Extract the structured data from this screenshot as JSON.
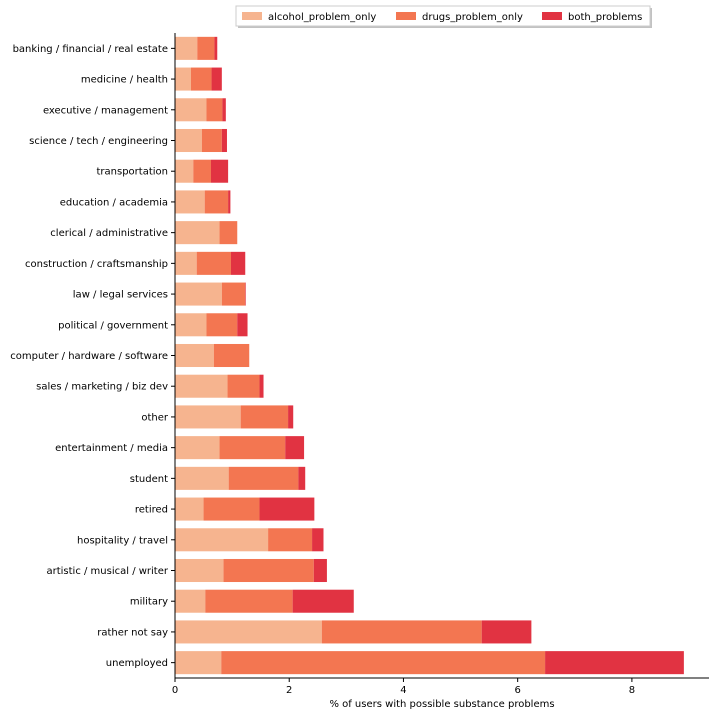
{
  "chart_data": {
    "type": "bar",
    "orientation": "horizontal",
    "stacked": true,
    "title": "",
    "xlabel": "% of users with possible substance problems",
    "ylabel": "",
    "xlim": [
      0,
      9.35
    ],
    "xticks": [
      0,
      2,
      4,
      6,
      8
    ],
    "grid": false,
    "legend_position": "top-right",
    "categories": [
      "banking / financial / real estate",
      "medicine / health",
      "executive / management",
      "science / tech / engineering",
      "transportation",
      "education / academia",
      "clerical / administrative",
      "construction / craftsmanship",
      "law / legal services",
      "political / government",
      "computer / hardware / software",
      "sales / marketing / biz dev",
      "other",
      "entertainment / media",
      "student",
      "retired",
      "hospitality / travel",
      "artistic / musical / writer",
      "military",
      "rather not say",
      "unemployed"
    ],
    "series": [
      {
        "name": "alcohol_problem_only",
        "color": "#f6b48f",
        "values": [
          0.39,
          0.28,
          0.55,
          0.47,
          0.32,
          0.52,
          0.78,
          0.38,
          0.82,
          0.55,
          0.68,
          0.92,
          1.15,
          0.78,
          0.94,
          0.5,
          1.63,
          0.85,
          0.53,
          2.57,
          0.81
        ]
      },
      {
        "name": "drugs_problem_only",
        "color": "#f37651",
        "values": [
          0.3,
          0.36,
          0.28,
          0.35,
          0.31,
          0.41,
          0.31,
          0.6,
          0.41,
          0.54,
          0.62,
          0.56,
          0.83,
          1.15,
          1.22,
          0.98,
          0.77,
          1.58,
          1.53,
          2.8,
          5.67
        ]
      },
      {
        "name": "both_problems",
        "color": "#e13342",
        "values": [
          0.05,
          0.18,
          0.06,
          0.09,
          0.3,
          0.04,
          0.0,
          0.25,
          0.01,
          0.18,
          0.0,
          0.07,
          0.09,
          0.33,
          0.12,
          0.96,
          0.2,
          0.23,
          1.07,
          0.87,
          2.43
        ]
      }
    ]
  }
}
